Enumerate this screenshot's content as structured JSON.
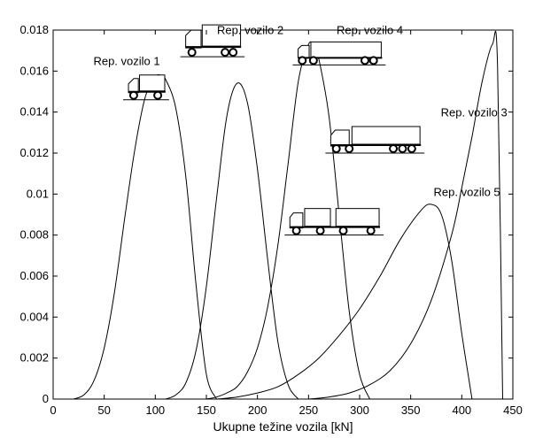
{
  "chart_data": {
    "type": "line",
    "title": "",
    "xlabel": "Ukupne težine vozila [kN]",
    "ylabel": "",
    "xlim": [
      0,
      450
    ],
    "ylim": [
      0,
      0.018
    ],
    "grid": false,
    "x_ticks": [
      0,
      50,
      100,
      150,
      200,
      250,
      300,
      350,
      400,
      450
    ],
    "x_tick_labels": [
      "0",
      "50",
      "100",
      "150",
      "200",
      "250",
      "300",
      "350",
      "400",
      "450"
    ],
    "y_ticks": [
      0,
      0.002,
      0.004,
      0.006,
      0.008,
      0.01,
      0.012,
      0.014,
      0.016,
      0.018
    ],
    "y_tick_labels": [
      "0",
      "0.002",
      "0.004",
      "0.006",
      "0.008",
      "0.01",
      "0.012",
      "0.014",
      "0.016",
      "0.018"
    ],
    "series": [
      {
        "x": [
          20,
          30,
          40,
          50,
          60,
          70,
          80,
          90,
          100,
          105,
          110,
          120,
          130,
          140,
          150,
          160
        ],
        "y": [
          0,
          0.0002,
          0.0009,
          0.0025,
          0.0052,
          0.0088,
          0.0122,
          0.0147,
          0.0157,
          0.0158,
          0.0156,
          0.0142,
          0.0108,
          0.0055,
          0.0012,
          0
        ]
      },
      {
        "x": [
          110,
          120,
          130,
          140,
          150,
          160,
          170,
          180,
          190,
          200,
          210,
          220,
          230,
          240
        ],
        "y": [
          0,
          0.0002,
          0.0008,
          0.0024,
          0.0055,
          0.0098,
          0.0138,
          0.0154,
          0.0145,
          0.0112,
          0.0068,
          0.0028,
          0.0007,
          0
        ]
      },
      {
        "x": [
          150,
          160,
          170,
          180,
          190,
          200,
          210,
          220,
          230,
          240,
          250,
          255,
          260,
          270,
          280,
          290,
          300,
          310
        ],
        "y": [
          0,
          0.0001,
          0.0003,
          0.0006,
          0.0013,
          0.0025,
          0.0045,
          0.0075,
          0.0115,
          0.0155,
          0.0173,
          0.0172,
          0.0166,
          0.0138,
          0.009,
          0.0042,
          0.0012,
          0
        ]
      },
      {
        "x": [
          160,
          180,
          200,
          220,
          240,
          260,
          280,
          300,
          320,
          340,
          360,
          370,
          380,
          390,
          400,
          410
        ],
        "y": [
          0,
          0.0001,
          0.0003,
          0.0006,
          0.0012,
          0.002,
          0.0031,
          0.0044,
          0.006,
          0.0078,
          0.0092,
          0.0095,
          0.009,
          0.0068,
          0.0032,
          0
        ]
      },
      {
        "x": [
          250,
          270,
          290,
          310,
          330,
          350,
          370,
          390,
          400,
          410,
          420,
          430,
          435,
          440
        ],
        "y": [
          0,
          0.0001,
          0.0003,
          0.0007,
          0.0014,
          0.0027,
          0.0048,
          0.008,
          0.0103,
          0.0128,
          0.0155,
          0.0173,
          0.0163,
          0
        ]
      }
    ],
    "annotations": [
      {
        "text": "Rep. vozilo 1",
        "x": 72,
        "y": 0.0163
      },
      {
        "text": "Rep. vozilo 2",
        "x": 193,
        "y": 0.0178
      },
      {
        "text": "Rep. vozilo 4",
        "x": 310,
        "y": 0.0178
      },
      {
        "text": "Rep. vozilo 3",
        "x": 412,
        "y": 0.0138
      },
      {
        "text": "Rep. vozilo 5",
        "x": 405,
        "y": 0.0099
      }
    ]
  },
  "vehicle_pictograms": [
    {
      "name": "truck-2-axle",
      "x1": 72,
      "x2": 110,
      "y": 0.0146
    },
    {
      "name": "truck-3-axle",
      "x1": 128,
      "x2": 184,
      "y": 0.0167
    },
    {
      "name": "tractor-semitrailer",
      "x1": 238,
      "x2": 322,
      "y": 0.0163
    },
    {
      "name": "truck-trailer-long",
      "x1": 270,
      "x2": 360,
      "y": 0.012
    },
    {
      "name": "truck-trailer-4axle",
      "x1": 230,
      "x2": 320,
      "y": 0.008
    }
  ]
}
